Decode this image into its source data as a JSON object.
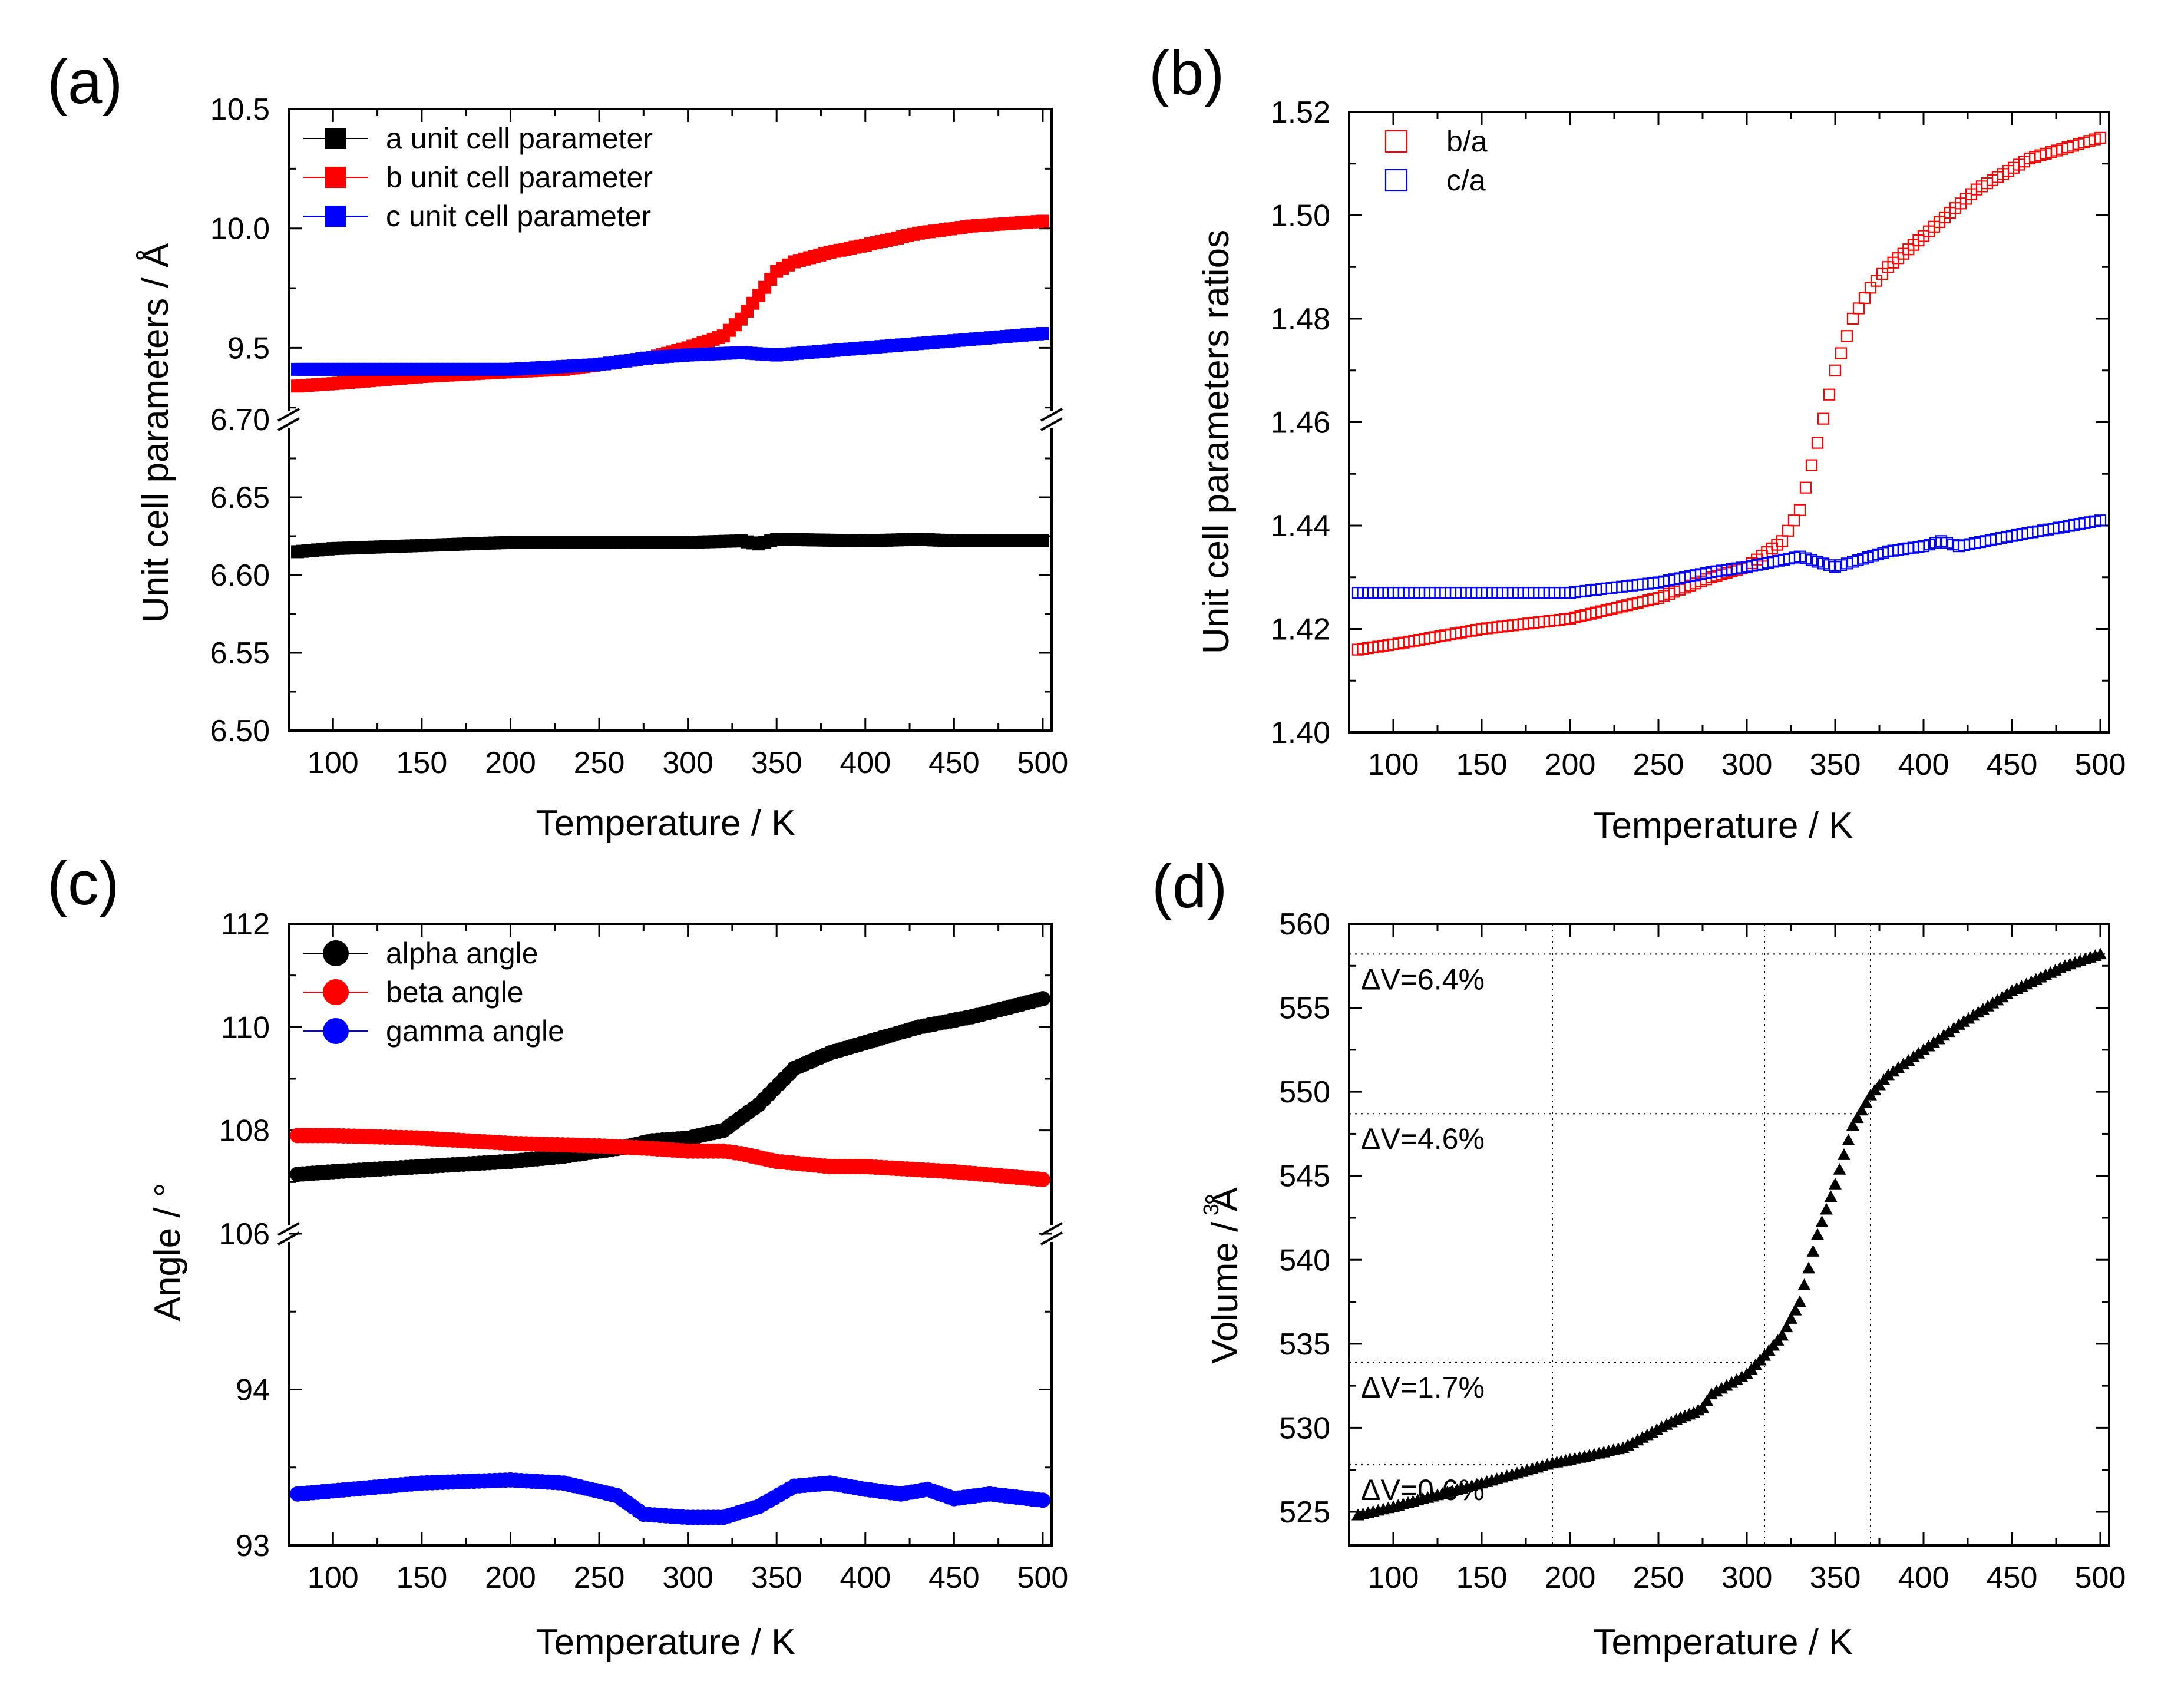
{
  "colors": {
    "black": "#000000",
    "red": "#ff0000",
    "blue": "#0000ff"
  },
  "chart_data": [
    {
      "id": "a",
      "panel_label": "(a)",
      "type": "scatter",
      "xlabel": "Temperature / K",
      "ylabel": "Unit cell parameters / Å",
      "xlim": [
        75,
        505
      ],
      "xticks": [
        100,
        150,
        200,
        250,
        300,
        350,
        400,
        450,
        500
      ],
      "broken_axis": true,
      "y_upper": {
        "range": [
          9.2,
          10.5
        ],
        "ticks": [
          "9.5",
          "10.0",
          "10.5"
        ],
        "break_label": "6.70"
      },
      "y_lower": {
        "range": [
          6.5,
          6.7
        ],
        "ticks": [
          "6.50",
          "6.55",
          "6.60",
          "6.65"
        ]
      },
      "marker": "square",
      "legend": {
        "position": "top-left"
      },
      "series": [
        {
          "name": "a unit cell parameter",
          "color": "#000000",
          "segment": "lower",
          "x": [
            80,
            100,
            150,
            200,
            250,
            280,
            300,
            330,
            340,
            350,
            400,
            430,
            450,
            500
          ],
          "y": [
            6.615,
            6.617,
            6.619,
            6.621,
            6.621,
            6.621,
            6.621,
            6.622,
            6.62,
            6.623,
            6.622,
            6.623,
            6.622,
            6.622
          ]
        },
        {
          "name": "b unit cell parameter",
          "color": "#ff0000",
          "segment": "upper",
          "x": [
            80,
            100,
            150,
            200,
            230,
            250,
            280,
            300,
            320,
            330,
            340,
            350,
            360,
            380,
            400,
            430,
            460,
            500
          ],
          "y": [
            9.34,
            9.35,
            9.38,
            9.4,
            9.41,
            9.43,
            9.46,
            9.5,
            9.55,
            9.62,
            9.72,
            9.82,
            9.86,
            9.9,
            9.93,
            9.98,
            10.01,
            10.03
          ]
        },
        {
          "name": "c unit cell parameter",
          "color": "#0000ff",
          "segment": "upper",
          "x": [
            80,
            100,
            150,
            200,
            250,
            280,
            300,
            330,
            350,
            400,
            450,
            500
          ],
          "y": [
            9.41,
            9.41,
            9.41,
            9.41,
            9.43,
            9.46,
            9.47,
            9.48,
            9.47,
            9.5,
            9.53,
            9.56
          ]
        }
      ]
    },
    {
      "id": "b",
      "panel_label": "(b)",
      "type": "scatter",
      "xlabel": "Temperature / K",
      "ylabel": "Unit cell parameters ratios",
      "xlim": [
        75,
        505
      ],
      "ylim": [
        1.4,
        1.52
      ],
      "xticks": [
        100,
        150,
        200,
        250,
        300,
        350,
        400,
        450,
        500
      ],
      "yticks": [
        "1.40",
        "1.42",
        "1.44",
        "1.46",
        "1.48",
        "1.50",
        "1.52"
      ],
      "marker": "open-square",
      "legend": {
        "position": "top-left"
      },
      "series": [
        {
          "name": "b/a",
          "color": "#ff0000",
          "x": [
            80,
            100,
            150,
            200,
            250,
            280,
            300,
            320,
            330,
            340,
            350,
            360,
            370,
            380,
            400,
            430,
            460,
            500
          ],
          "y": [
            1.416,
            1.417,
            1.42,
            1.422,
            1.426,
            1.43,
            1.432,
            1.437,
            1.443,
            1.456,
            1.47,
            1.48,
            1.486,
            1.49,
            1.496,
            1.505,
            1.511,
            1.515
          ]
        },
        {
          "name": "c/a",
          "color": "#0000ff",
          "x": [
            80,
            100,
            150,
            200,
            250,
            280,
            300,
            330,
            340,
            350,
            360,
            380,
            400,
            410,
            420,
            450,
            500
          ],
          "y": [
            1.427,
            1.427,
            1.427,
            1.427,
            1.429,
            1.431,
            1.432,
            1.434,
            1.433,
            1.432,
            1.433,
            1.435,
            1.436,
            1.437,
            1.436,
            1.438,
            1.441
          ]
        }
      ]
    },
    {
      "id": "c",
      "panel_label": "(c)",
      "type": "scatter",
      "xlabel": "Temperature / K",
      "ylabel": "Angle / °",
      "xlim": [
        75,
        505
      ],
      "xticks": [
        100,
        150,
        200,
        250,
        300,
        350,
        400,
        450,
        500
      ],
      "broken_axis": true,
      "y_upper": {
        "range": [
          106,
          112
        ],
        "ticks": [
          "106",
          "108",
          "110",
          "112"
        ]
      },
      "y_lower": {
        "range": [
          93,
          95
        ],
        "ticks": [
          "93",
          "94"
        ]
      },
      "marker": "circle",
      "legend": {
        "position": "top-left"
      },
      "series": [
        {
          "name": "alpha angle",
          "color": "#000000",
          "segment": "upper",
          "x": [
            80,
            100,
            150,
            200,
            230,
            260,
            280,
            300,
            320,
            340,
            360,
            380,
            400,
            430,
            460,
            500
          ],
          "y": [
            107.15,
            107.2,
            107.3,
            107.4,
            107.5,
            107.65,
            107.8,
            107.85,
            108.0,
            108.5,
            109.2,
            109.5,
            109.7,
            110.0,
            110.2,
            110.55
          ]
        },
        {
          "name": "beta angle",
          "color": "#ff0000",
          "segment": "upper",
          "x": [
            80,
            100,
            150,
            200,
            250,
            280,
            300,
            320,
            330,
            350,
            380,
            400,
            450,
            500
          ],
          "y": [
            107.9,
            107.9,
            107.85,
            107.75,
            107.7,
            107.65,
            107.6,
            107.6,
            107.55,
            107.4,
            107.3,
            107.3,
            107.2,
            107.05
          ]
        },
        {
          "name": "gamma angle",
          "color": "#0000ff",
          "segment": "lower",
          "x": [
            80,
            100,
            150,
            200,
            230,
            260,
            275,
            300,
            320,
            340,
            360,
            380,
            400,
            420,
            435,
            450,
            470,
            500
          ],
          "y": [
            93.33,
            93.35,
            93.4,
            93.42,
            93.4,
            93.32,
            93.2,
            93.18,
            93.18,
            93.25,
            93.38,
            93.4,
            93.36,
            93.33,
            93.36,
            93.3,
            93.33,
            93.29
          ]
        }
      ]
    },
    {
      "id": "d",
      "panel_label": "(d)",
      "type": "scatter",
      "xlabel": "Temperature / K",
      "ylabel": "Volume / Å",
      "ylabel_superscript": "3",
      "xlim": [
        75,
        505
      ],
      "ylim": [
        523,
        560
      ],
      "xticks": [
        100,
        150,
        200,
        250,
        300,
        350,
        400,
        450,
        500
      ],
      "yticks": [
        "525",
        "530",
        "535",
        "540",
        "545",
        "550",
        "555",
        "560"
      ],
      "marker": "triangle",
      "series": [
        {
          "name": "Volume",
          "color": "#000000",
          "x": [
            80,
            100,
            150,
            190,
            200,
            230,
            260,
            270,
            275,
            280,
            300,
            310,
            320,
            330,
            340,
            350,
            360,
            370,
            380,
            400,
            420,
            450,
            480,
            500
          ],
          "y": [
            524.8,
            525.3,
            526.7,
            527.9,
            528.1,
            528.8,
            530.5,
            530.9,
            531.2,
            532.0,
            533.2,
            534.3,
            535.5,
            537.5,
            541.5,
            544.5,
            548.0,
            549.8,
            551.0,
            552.5,
            554.0,
            556.0,
            557.5,
            558.2
          ]
        }
      ],
      "reference_lines": {
        "vertical_x": [
          190,
          310,
          370
        ]
      },
      "annotations": [
        {
          "text": "ΔV=6.4%",
          "y": 558.2
        },
        {
          "text": "ΔV=4.6%",
          "y": 548.7
        },
        {
          "text": "ΔV=1.7%",
          "y": 533.9
        },
        {
          "text": "ΔV=0.6%",
          "y": 527.8
        }
      ]
    }
  ]
}
